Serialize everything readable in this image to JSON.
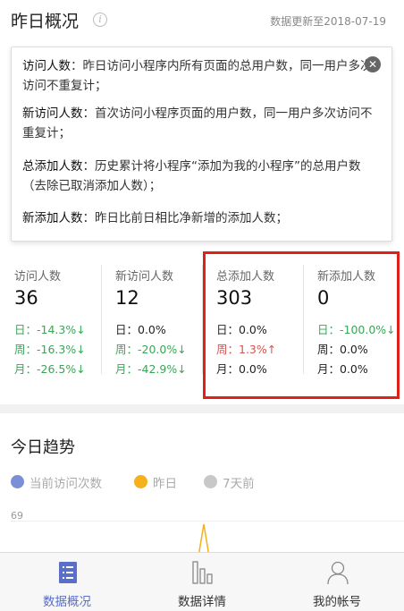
{
  "header": {
    "title": "昨日概况",
    "update_text": "数据更新至2018-07-19"
  },
  "tooltip": {
    "items": [
      {
        "term": "访问人数",
        "desc": "：昨日访问小程序内所有页面的总用户数，同一用户多次访问不重复计；"
      },
      {
        "term": "新访问人数",
        "desc": "：首次访问小程序页面的用户数，同一用户多次访问不重复计；"
      },
      {
        "term": "总添加人数",
        "desc": "：历史累计将小程序“添加为我的小程序”的总用户数（去除已取消添加人数）；"
      },
      {
        "term": "新添加人数",
        "desc": "：昨日比前日相比净新增的添加人数；"
      }
    ]
  },
  "stats": [
    {
      "label": "访问人数",
      "value": "36",
      "day": "日：-14.3%↓",
      "week": "周：-16.3%↓",
      "month": "月：-26.5%↓",
      "day_color": "green",
      "week_color": "green",
      "month_color": "green"
    },
    {
      "label": "新访问人数",
      "value": "12",
      "day": "日：0.0%",
      "week": "周：-20.0%↓",
      "month": "月：-42.9%↓",
      "day_color": "black",
      "week_color": "green",
      "month_color": "green"
    },
    {
      "label": "总添加人数",
      "value": "303",
      "day": "日：0.0%",
      "week": "周：1.3%↑",
      "month": "月：0.0%",
      "day_color": "black",
      "week_color": "red",
      "month_color": "black"
    },
    {
      "label": "新添加人数",
      "value": "0",
      "day": "日：-100.0%↓",
      "week": "周：0.0%",
      "month": "月：0.0%",
      "day_color": "green",
      "week_color": "black",
      "month_color": "black"
    }
  ],
  "trend": {
    "title": "今日趋势",
    "legend": [
      {
        "label": "当前访问次数",
        "color": "#7b8fd6"
      },
      {
        "label": "昨日",
        "color": "#f6b01c"
      },
      {
        "label": "7天前",
        "color": "#c8c8c8"
      }
    ],
    "y_tick": "69"
  },
  "tabbar": {
    "tabs": [
      {
        "label": "数据概况",
        "active": true
      },
      {
        "label": "数据详情",
        "active": false
      },
      {
        "label": "我的帐号",
        "active": false
      }
    ],
    "active_color": "#5a6fc7",
    "inactive_color": "#333333"
  }
}
